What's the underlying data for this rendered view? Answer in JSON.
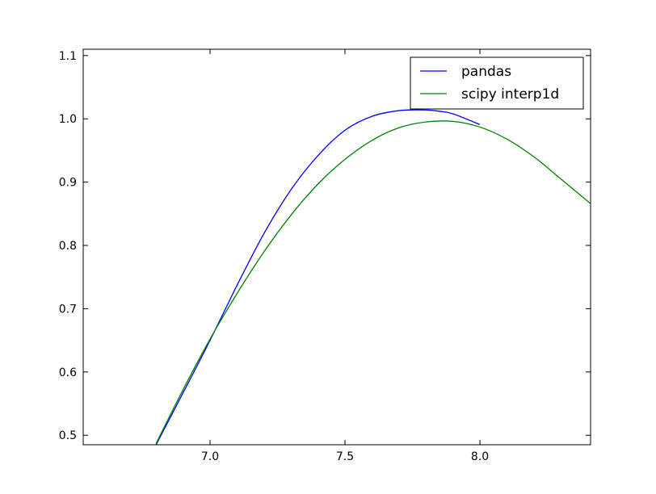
{
  "chart_data": {
    "type": "line",
    "title": "",
    "xlabel": "",
    "ylabel": "",
    "xlim": [
      6.53,
      8.41
    ],
    "ylim": [
      0.485,
      1.11
    ],
    "x_ticks": [
      7.0,
      7.5,
      8.0
    ],
    "x_tick_labels": [
      "7.0",
      "7.5",
      "8.0"
    ],
    "y_ticks": [
      0.5,
      0.6,
      0.7,
      0.8,
      0.9,
      1.0,
      1.1
    ],
    "y_tick_labels": [
      "0.5",
      "0.6",
      "0.7",
      "0.8",
      "0.9",
      "1.0",
      "1.1"
    ],
    "grid": false,
    "legend_position": "top-right",
    "series": [
      {
        "name": "pandas",
        "color": "#0000ff",
        "x": [
          6.8,
          6.9,
          7.0,
          7.1,
          7.2,
          7.3,
          7.4,
          7.5,
          7.6,
          7.7,
          7.8,
          7.85,
          7.9,
          8.0
        ],
        "y": [
          0.485,
          0.567,
          0.65,
          0.737,
          0.819,
          0.888,
          0.942,
          0.982,
          1.004,
          1.013,
          1.014,
          1.012,
          1.008,
          0.991
        ]
      },
      {
        "name": "scipy interp1d",
        "color": "#008000",
        "x": [
          6.8,
          6.9,
          7.0,
          7.1,
          7.2,
          7.3,
          7.4,
          7.5,
          7.6,
          7.7,
          7.8,
          7.9,
          8.0,
          8.1,
          8.2,
          8.3,
          8.41
        ],
        "y": [
          0.487,
          0.572,
          0.652,
          0.724,
          0.79,
          0.848,
          0.897,
          0.936,
          0.966,
          0.986,
          0.995,
          0.996,
          0.987,
          0.968,
          0.94,
          0.905,
          0.866
        ]
      }
    ]
  }
}
